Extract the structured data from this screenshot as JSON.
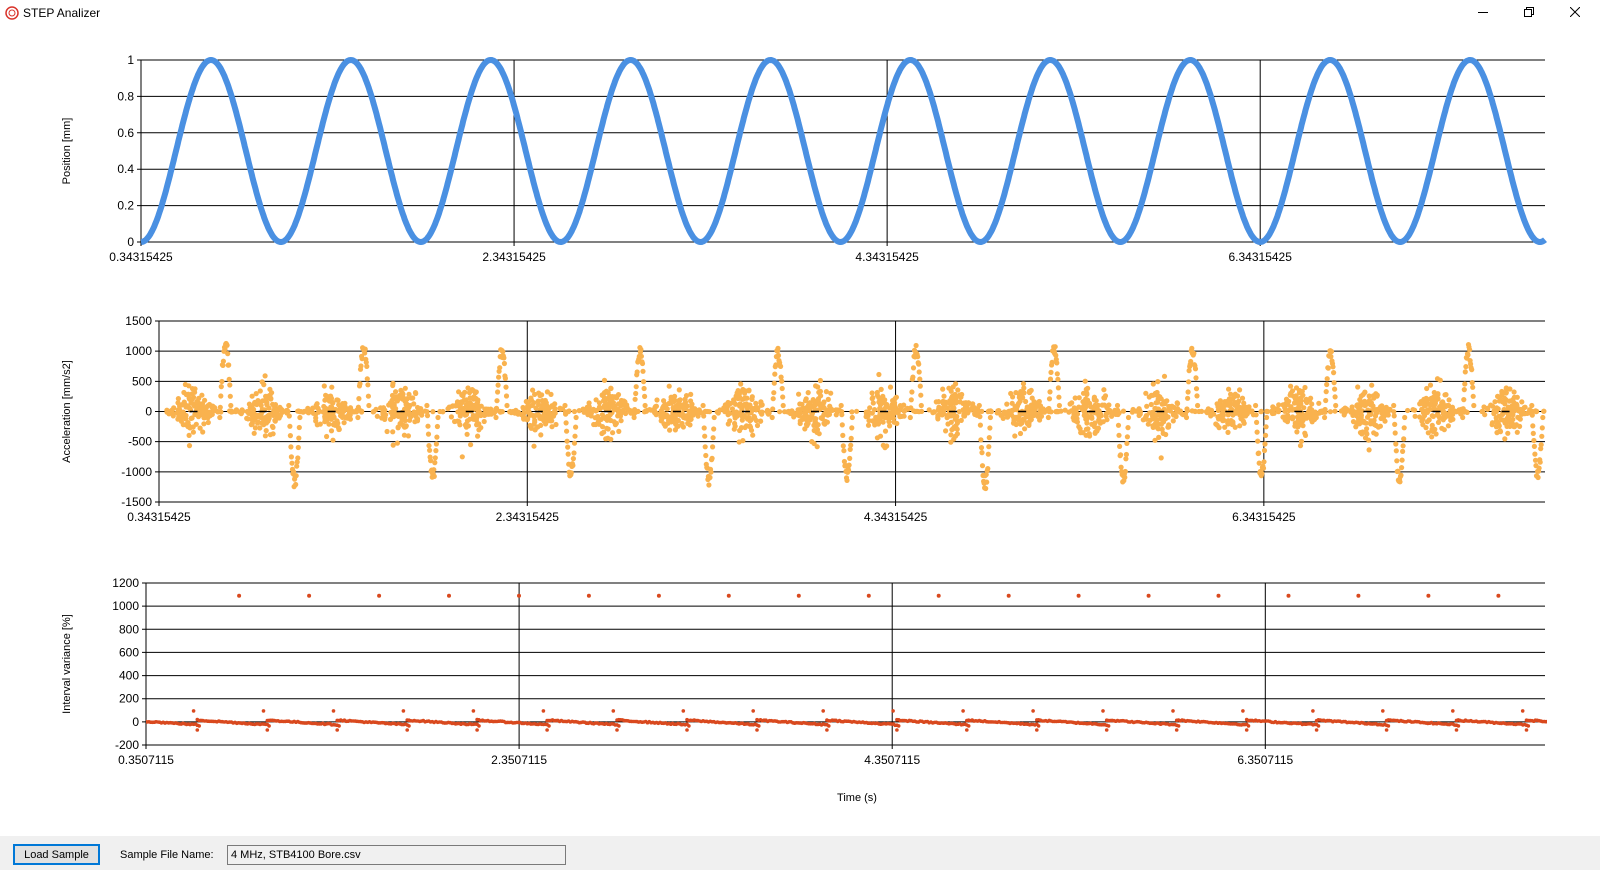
{
  "window": {
    "title": "STEP Analizer",
    "icon": "app-circle-icon",
    "controls": [
      "minimize-icon",
      "restore-icon",
      "close-icon"
    ]
  },
  "charts": {
    "x_axis_title": "Time (s)"
  },
  "chart_data": [
    {
      "type": "line",
      "ylabel": "Position [mm]",
      "xlim": [
        0.34315425,
        7.87
      ],
      "ylim": [
        0,
        1
      ],
      "yticks": [
        "1",
        "0.8",
        "0.6",
        "0.4",
        "0.2",
        "0"
      ],
      "xticks": [
        "0.34315425",
        "2.34315425",
        "4.34315425",
        "6.34315425"
      ],
      "x_vertical_gridlines": [
        2.34315425,
        4.34315425,
        6.34315425
      ],
      "color": "#4a90e2",
      "series": [
        {
          "function": "position = (1 - cos(2*pi*(x - 0.34315425)/0.75)) / 2",
          "period_s": 0.75,
          "min": 0,
          "max": 1,
          "cycles": 10
        }
      ],
      "grid": true
    },
    {
      "type": "scatter",
      "ylabel": "Acceleration [mm/s2]",
      "xlim": [
        0.34315425,
        7.87
      ],
      "ylim": [
        -1500,
        1500
      ],
      "yticks": [
        "1500",
        "1000",
        "500",
        "0",
        "-500",
        "-1000",
        "-1500"
      ],
      "xticks": [
        "0.34315425",
        "2.34315425",
        "4.34315425",
        "6.34315425"
      ],
      "x_vertical_gridlines": [
        2.34315425,
        4.34315425,
        6.34315425
      ],
      "color": "#f9b24e",
      "series": [
        {
          "description": "dense noisy cloud around 0 with periodic spikes",
          "period_s": 0.375,
          "spike_peaks": [
            1150,
            -1150,
            1300,
            -1250
          ],
          "typical_band": [
            -500,
            500
          ]
        }
      ],
      "grid": true
    },
    {
      "type": "scatter",
      "ylabel": "Interval variance [%]",
      "xlim": [
        0.3507115,
        7.85
      ],
      "ylim": [
        -200,
        1200
      ],
      "yticks": [
        "1200",
        "1000",
        "800",
        "600",
        "400",
        "200",
        "0",
        "-200"
      ],
      "xticks": [
        "0.3507115",
        "2.3507115",
        "4.3507115",
        "6.3507115"
      ],
      "x_vertical_gridlines": [
        2.3507115,
        4.3507115,
        6.3507115
      ],
      "color": "#d9491e",
      "series": [
        {
          "description": "baseline near 0 with sawtooth dips to about -80 each 0.375 s, occasional points near 100, isolated points at 1090",
          "period_s": 0.375,
          "outlier_value": 1090,
          "outlier_first_x": 0.85
        }
      ],
      "grid": true
    }
  ],
  "bottom": {
    "load_button": "Load Sample",
    "file_label": "Sample File Name:",
    "file_value": "4 MHz, STB4100 Bore.csv"
  }
}
